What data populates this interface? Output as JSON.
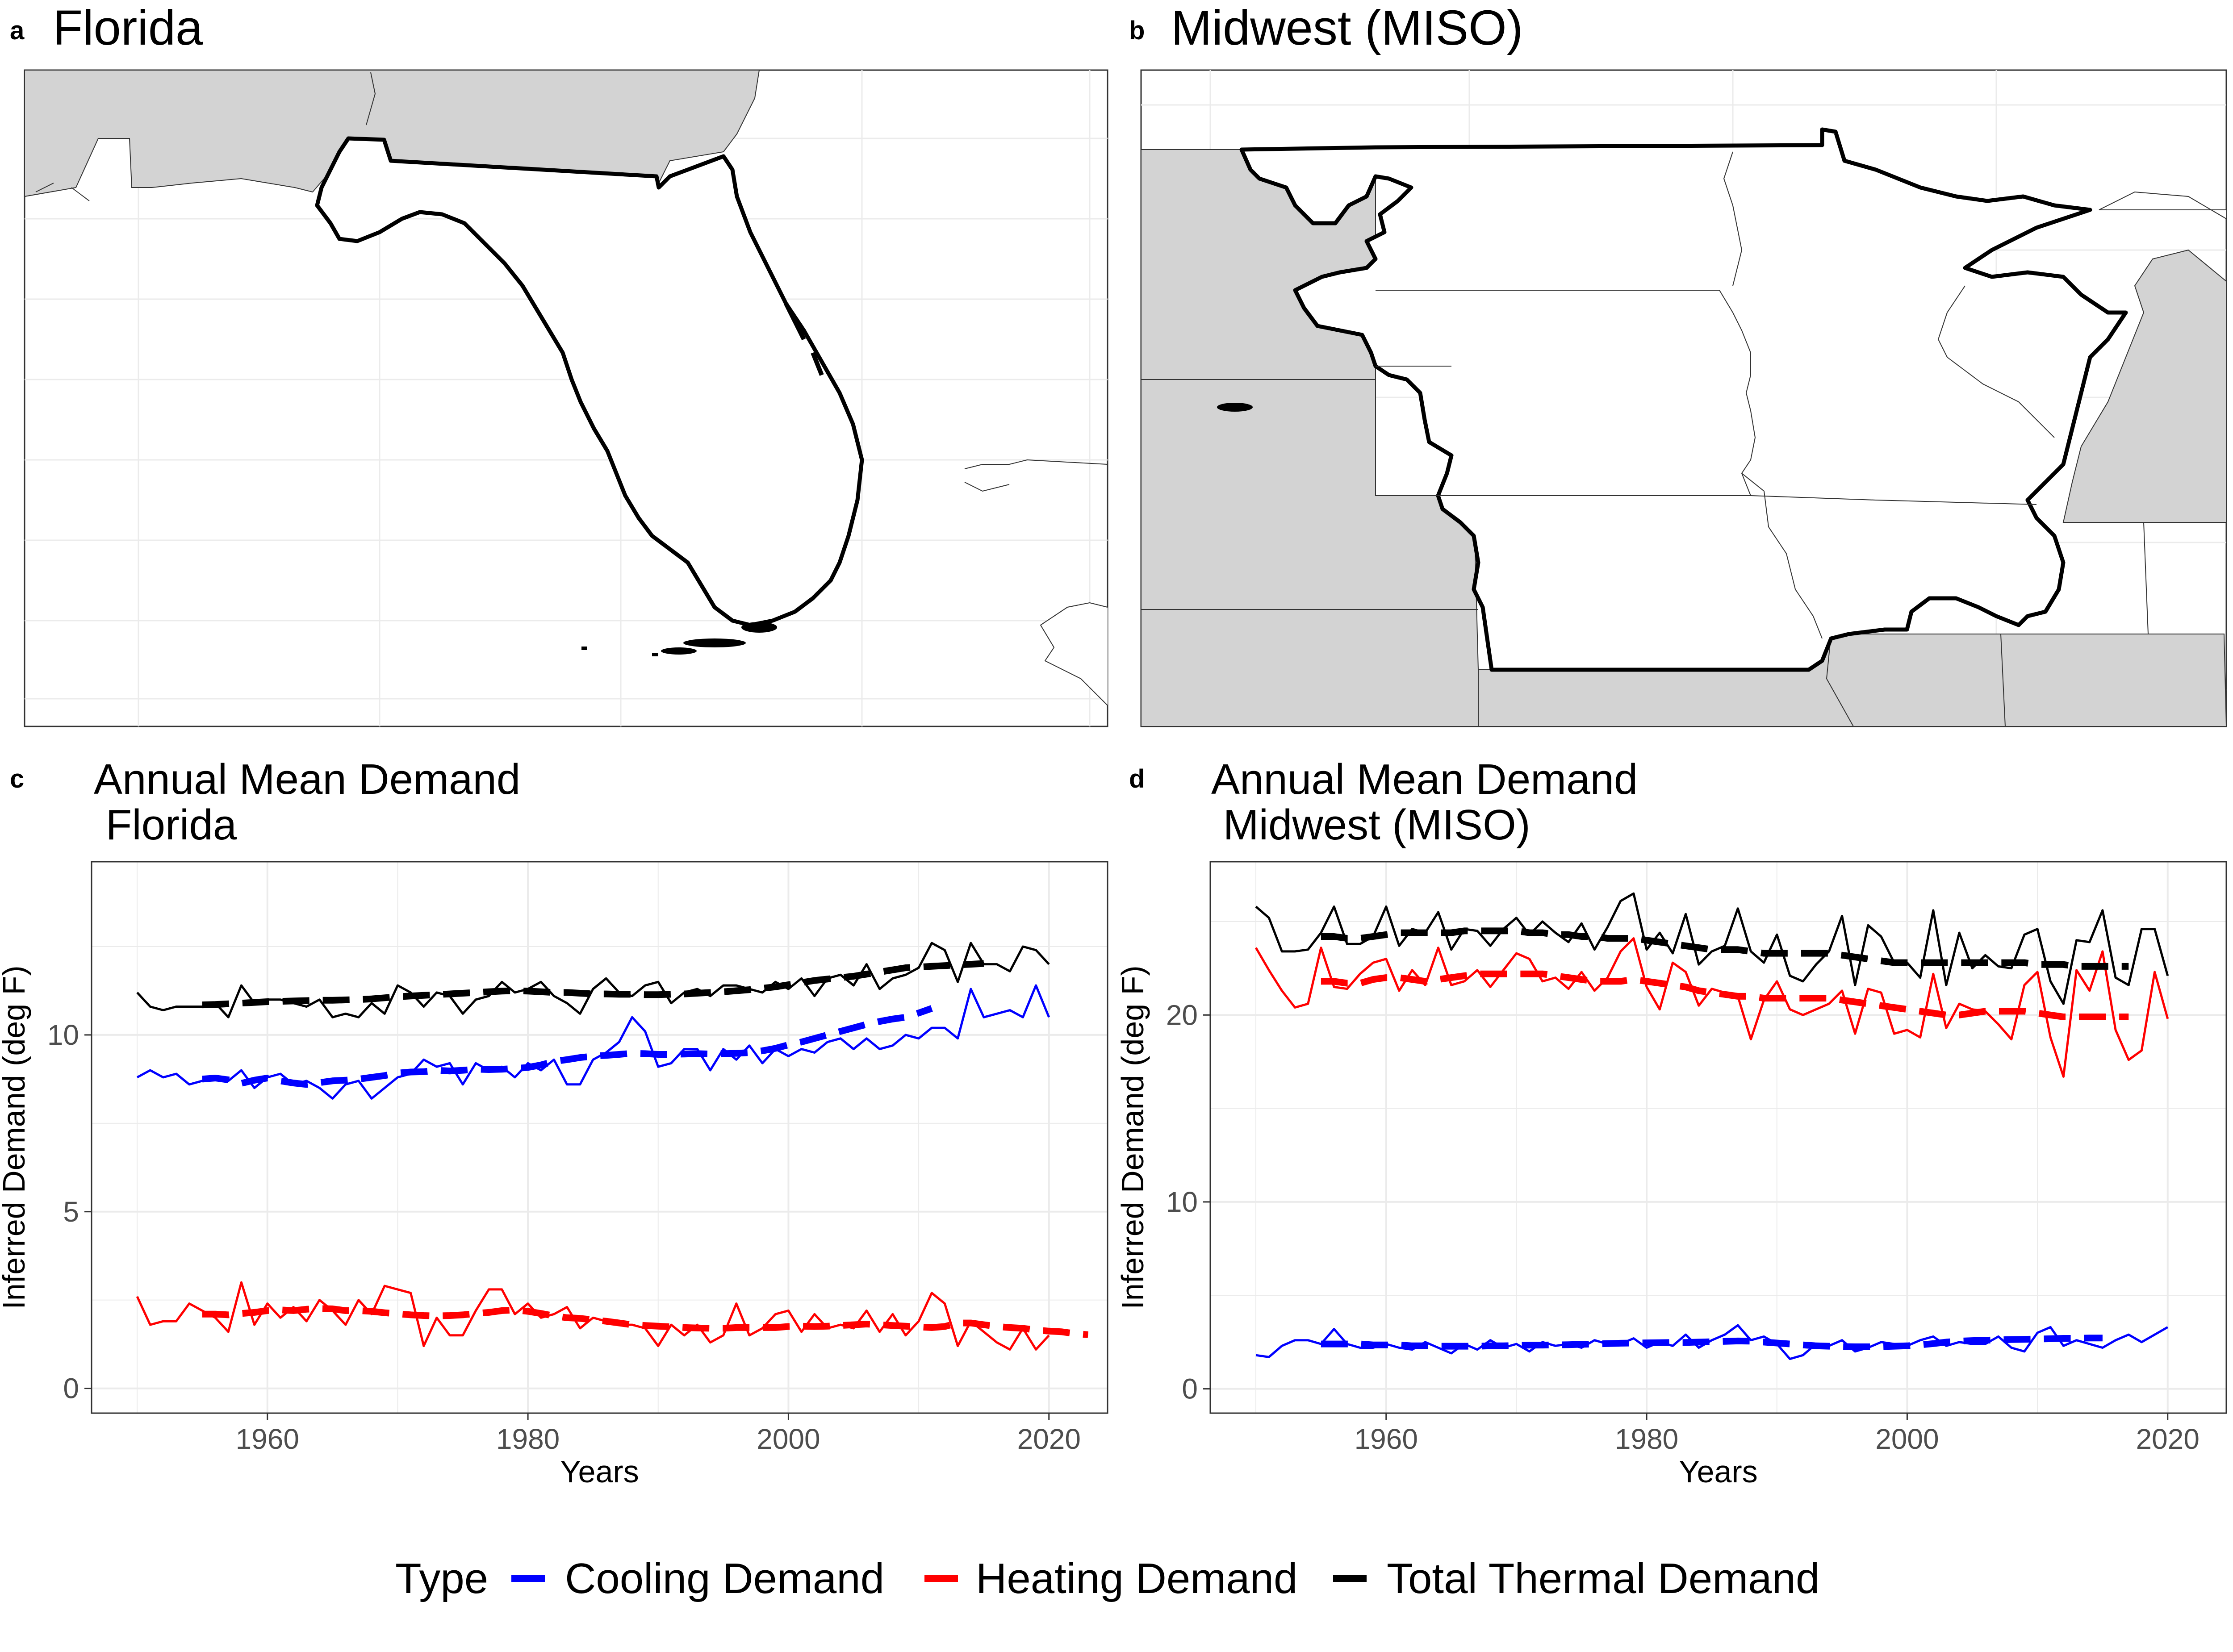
{
  "panels": {
    "a": {
      "letter": "a",
      "title": "Florida"
    },
    "b": {
      "letter": "b",
      "title": "Midwest (MISO)"
    },
    "c": {
      "letter": "c"
    },
    "d": {
      "letter": "d"
    }
  },
  "legend": {
    "title": "Type",
    "items": [
      {
        "label": "Cooling Demand",
        "color": "#0000ff"
      },
      {
        "label": "Heating Demand",
        "color": "#ff0000"
      },
      {
        "label": "Total Thermal Demand",
        "color": "#000000"
      }
    ]
  },
  "colors": {
    "cooling": "#0000ff",
    "heating": "#ff0000",
    "total": "#000000",
    "land": "#d3d3d3",
    "grid": "#ebebeb"
  },
  "chart_data": [
    {
      "type": "line",
      "title_line1": "Annual Mean Demand",
      "title_line2": " Florida",
      "xlabel": "Years",
      "ylabel": "Inferred Demand (deg F)",
      "xlim": [
        1946.5,
        2024.5
      ],
      "ylim": [
        -0.7,
        14.9
      ],
      "xticks": [
        1960,
        1980,
        2000,
        2020
      ],
      "yticks": [
        0,
        5,
        10
      ],
      "series": [
        {
          "name": "Cooling Demand",
          "color": "#0000ff",
          "x_start": 1950,
          "values": [
            8.8,
            9.0,
            8.8,
            8.9,
            8.6,
            8.7,
            8.8,
            8.7,
            9.0,
            8.5,
            8.8,
            8.9,
            8.6,
            8.7,
            8.5,
            8.2,
            8.6,
            8.7,
            8.2,
            8.5,
            8.8,
            8.9,
            9.3,
            9.1,
            9.2,
            8.6,
            9.2,
            9.0,
            9.1,
            8.8,
            9.2,
            9.0,
            9.3,
            8.6,
            8.6,
            9.3,
            9.5,
            9.8,
            10.5,
            10.1,
            9.1,
            9.2,
            9.6,
            9.6,
            9.0,
            9.6,
            9.3,
            9.7,
            9.2,
            9.6,
            9.4,
            9.6,
            9.5,
            9.8,
            9.9,
            9.6,
            9.9,
            9.6,
            9.7,
            10.0,
            9.9,
            10.2,
            10.2,
            9.9,
            11.3,
            10.5,
            10.6,
            10.7,
            10.5,
            11.4,
            10.5
          ]
        },
        {
          "name": "Heating Demand",
          "color": "#ff0000",
          "x_start": 1950,
          "values": [
            2.6,
            1.8,
            1.9,
            1.9,
            2.4,
            2.2,
            2.0,
            1.6,
            3.0,
            1.8,
            2.4,
            2.0,
            2.3,
            1.9,
            2.5,
            2.2,
            1.8,
            2.5,
            2.1,
            2.9,
            2.8,
            2.7,
            1.2,
            2.0,
            1.5,
            1.5,
            2.2,
            2.8,
            2.8,
            2.1,
            2.4,
            2.0,
            2.1,
            2.3,
            1.7,
            2.0,
            1.9,
            1.8,
            1.8,
            1.7,
            1.2,
            1.8,
            1.5,
            1.8,
            1.3,
            1.5,
            2.4,
            1.5,
            1.7,
            2.1,
            2.2,
            1.6,
            2.1,
            1.7,
            1.8,
            1.7,
            2.2,
            1.6,
            2.1,
            1.5,
            1.9,
            2.7,
            2.4,
            1.2,
            1.9,
            1.6,
            1.3,
            1.1,
            1.7,
            1.1,
            1.5
          ]
        },
        {
          "name": "Total Thermal Demand",
          "color": "#000000",
          "x_start": 1950,
          "values": [
            11.2,
            10.8,
            10.7,
            10.8,
            10.8,
            10.8,
            10.9,
            10.5,
            11.4,
            10.9,
            11.0,
            11.0,
            10.9,
            10.8,
            11.0,
            10.5,
            10.6,
            10.5,
            10.9,
            10.6,
            11.4,
            11.2,
            10.8,
            11.2,
            11.1,
            10.6,
            11.0,
            11.1,
            11.5,
            11.2,
            11.3,
            11.5,
            11.1,
            10.9,
            10.6,
            11.3,
            11.6,
            11.2,
            11.1,
            11.4,
            11.5,
            10.9,
            11.2,
            11.3,
            11.1,
            11.4,
            11.4,
            11.3,
            11.2,
            11.5,
            11.3,
            11.6,
            11.1,
            11.6,
            11.7,
            11.4,
            12.0,
            11.3,
            11.6,
            11.7,
            11.9,
            12.6,
            12.4,
            11.5,
            12.6,
            12.0,
            12.0,
            11.8,
            12.5,
            12.4,
            12.0
          ]
        },
        {
          "name": "Cooling Demand trend",
          "color": "#0000ff",
          "dashed": true,
          "x_start": 1955,
          "values": [
            8.75,
            8.78,
            8.73,
            8.63,
            8.72,
            8.78,
            8.7,
            8.64,
            8.6,
            8.65,
            8.7,
            8.72,
            8.75,
            8.8,
            8.85,
            8.92,
            8.95,
            8.96,
            9.0,
            8.98,
            9.0,
            9.03,
            9.02,
            9.03,
            9.05,
            9.08,
            9.15,
            9.25,
            9.3,
            9.36,
            9.4,
            9.42,
            9.45,
            9.48,
            9.47,
            9.45,
            9.45,
            9.46,
            9.47,
            9.46,
            9.47,
            9.48,
            9.5,
            9.55,
            9.62,
            9.72,
            9.8,
            9.9,
            10.0,
            10.1,
            10.2,
            10.3,
            10.38,
            10.45,
            10.5,
            10.62,
            10.75
          ]
        },
        {
          "name": "Heating Demand trend",
          "color": "#ff0000",
          "dashed": true,
          "x_start": 1955,
          "values": [
            2.1,
            2.1,
            2.08,
            2.12,
            2.15,
            2.2,
            2.22,
            2.2,
            2.24,
            2.26,
            2.25,
            2.2,
            2.2,
            2.18,
            2.14,
            2.11,
            2.08,
            2.06,
            2.05,
            2.06,
            2.08,
            2.12,
            2.15,
            2.2,
            2.22,
            2.18,
            2.12,
            2.05,
            2.0,
            1.98,
            1.94,
            1.9,
            1.85,
            1.8,
            1.78,
            1.76,
            1.74,
            1.72,
            1.71,
            1.7,
            1.7,
            1.72,
            1.72,
            1.72,
            1.72,
            1.75,
            1.76,
            1.75,
            1.76,
            1.78,
            1.8,
            1.82,
            1.8,
            1.78,
            1.76,
            1.74,
            1.72,
            1.75,
            1.85,
            1.85,
            1.8,
            1.75,
            1.72,
            1.7,
            1.65,
            1.62,
            1.6,
            1.55,
            1.52
          ]
        },
        {
          "name": "Total Thermal Demand trend",
          "color": "#000000",
          "dashed": true,
          "x_start": 1955,
          "values": [
            10.85,
            10.86,
            10.88,
            10.9,
            10.92,
            10.94,
            10.95,
            10.96,
            10.97,
            10.98,
            10.98,
            10.99,
            11.0,
            11.02,
            11.05,
            11.08,
            11.1,
            11.12,
            11.14,
            11.16,
            11.18,
            11.2,
            11.22,
            11.24,
            11.25,
            11.24,
            11.22,
            11.2,
            11.2,
            11.18,
            11.16,
            11.16,
            11.15,
            11.15,
            11.14,
            11.14,
            11.15,
            11.16,
            11.18,
            11.2,
            11.22,
            11.25,
            11.28,
            11.32,
            11.36,
            11.42,
            11.48,
            11.54,
            11.58,
            11.62,
            11.66,
            11.72,
            11.78,
            11.84,
            11.9,
            11.92,
            11.94,
            11.96,
            11.98,
            12.0,
            12.02
          ]
        }
      ]
    },
    {
      "type": "line",
      "title_line1": "Annual Mean Demand",
      "title_line2": " Midwest (MISO)",
      "xlabel": "Years",
      "ylabel": "Inferred Demand (deg F)",
      "xlim": [
        1946.5,
        2024.5
      ],
      "ylim": [
        -1.3,
        28.2
      ],
      "xticks": [
        1960,
        1980,
        2000,
        2020
      ],
      "yticks": [
        0,
        10,
        20
      ],
      "series": [
        {
          "name": "Cooling Demand",
          "color": "#0000ff",
          "x_start": 1950,
          "values": [
            1.8,
            1.7,
            2.3,
            2.6,
            2.6,
            2.4,
            3.2,
            2.4,
            2.2,
            2.2,
            2.4,
            2.2,
            2.1,
            2.5,
            2.2,
            1.9,
            2.4,
            2.1,
            2.6,
            2.2,
            2.4,
            2.0,
            2.5,
            2.3,
            2.4,
            2.2,
            2.6,
            2.4,
            2.4,
            2.7,
            2.2,
            2.5,
            2.3,
            2.9,
            2.2,
            2.6,
            2.9,
            3.4,
            2.6,
            2.8,
            2.4,
            1.6,
            1.8,
            2.4,
            2.3,
            2.6,
            2.0,
            2.2,
            2.5,
            2.4,
            2.3,
            2.6,
            2.8,
            2.3,
            2.5,
            2.4,
            2.4,
            2.8,
            2.2,
            2.0,
            3.0,
            3.3,
            2.3,
            2.6,
            2.4,
            2.2,
            2.6,
            2.9,
            2.5,
            2.9,
            3.3
          ]
        },
        {
          "name": "Heating Demand",
          "color": "#ff0000",
          "x_start": 1950,
          "values": [
            23.6,
            22.4,
            21.3,
            20.4,
            20.6,
            23.6,
            21.5,
            21.4,
            22.2,
            22.8,
            23.0,
            21.3,
            22.4,
            21.6,
            23.6,
            21.6,
            21.8,
            22.4,
            21.5,
            22.4,
            23.3,
            23.0,
            21.8,
            22.0,
            21.4,
            22.3,
            21.3,
            22.0,
            23.4,
            24.1,
            21.5,
            20.3,
            22.8,
            22.3,
            20.5,
            21.4,
            21.2,
            21.0,
            18.7,
            20.8,
            21.8,
            20.3,
            20.0,
            20.3,
            20.6,
            21.3,
            19.0,
            21.4,
            21.2,
            19.0,
            19.2,
            18.8,
            22.2,
            19.3,
            20.6,
            20.3,
            20.2,
            19.5,
            18.7,
            21.6,
            22.3,
            18.8,
            16.7,
            22.4,
            21.3,
            23.4,
            19.2,
            17.6,
            18.1,
            22.3,
            19.8
          ]
        },
        {
          "name": "Total Thermal Demand",
          "color": "#000000",
          "x_start": 1950,
          "values": [
            25.8,
            25.2,
            23.4,
            23.4,
            23.5,
            24.4,
            25.8,
            23.8,
            23.8,
            24.2,
            25.8,
            23.7,
            24.6,
            24.4,
            25.5,
            23.5,
            24.6,
            24.5,
            23.7,
            24.6,
            25.2,
            24.3,
            25.0,
            24.4,
            23.9,
            24.9,
            23.5,
            24.7,
            26.1,
            26.5,
            23.5,
            24.4,
            23.3,
            25.4,
            22.7,
            23.4,
            23.7,
            25.7,
            23.4,
            22.8,
            24.3,
            22.1,
            21.8,
            22.7,
            23.4,
            25.3,
            21.6,
            24.8,
            24.2,
            22.8,
            22.8,
            22.0,
            25.6,
            21.6,
            24.4,
            22.5,
            23.2,
            22.6,
            22.5,
            24.3,
            24.6,
            21.8,
            20.6,
            24.0,
            23.9,
            25.6,
            22.0,
            21.6,
            24.6,
            24.6,
            22.1
          ]
        },
        {
          "name": "Cooling Demand trend",
          "color": "#0000ff",
          "dashed": true,
          "x_start": 1955,
          "values": [
            2.4,
            2.4,
            2.4,
            2.4,
            2.35,
            2.35,
            2.35,
            2.3,
            2.3,
            2.28,
            2.28,
            2.28,
            2.28,
            2.3,
            2.3,
            2.32,
            2.34,
            2.34,
            2.35,
            2.36,
            2.38,
            2.4,
            2.42,
            2.44,
            2.45,
            2.46,
            2.47,
            2.48,
            2.48,
            2.5,
            2.52,
            2.54,
            2.56,
            2.55,
            2.5,
            2.45,
            2.4,
            2.35,
            2.3,
            2.28,
            2.26,
            2.25,
            2.25,
            2.26,
            2.28,
            2.3,
            2.35,
            2.42,
            2.5,
            2.55,
            2.58,
            2.6,
            2.62,
            2.64,
            2.65,
            2.66,
            2.68,
            2.7,
            2.7,
            2.72,
            2.72
          ]
        },
        {
          "name": "Heating Demand trend",
          "color": "#ff0000",
          "dashed": true,
          "x_start": 1955,
          "values": [
            21.8,
            21.8,
            21.7,
            21.7,
            21.9,
            22.0,
            22.0,
            21.9,
            21.8,
            21.9,
            22.0,
            22.1,
            22.2,
            22.2,
            22.2,
            22.2,
            22.2,
            22.2,
            22.1,
            22.0,
            21.9,
            21.8,
            21.8,
            21.8,
            21.9,
            21.8,
            21.7,
            21.6,
            21.5,
            21.3,
            21.2,
            21.1,
            21.0,
            21.0,
            20.9,
            20.9,
            20.9,
            20.9,
            20.9,
            20.9,
            20.8,
            20.7,
            20.6,
            20.5,
            20.4,
            20.3,
            20.2,
            20.1,
            20.0,
            20.0,
            20.1,
            20.2,
            20.2,
            20.2,
            20.2,
            20.1,
            20.0,
            19.9,
            19.9,
            19.9,
            19.9,
            19.9,
            19.9
          ]
        },
        {
          "name": "Total Thermal Demand trend",
          "color": "#000000",
          "dashed": true,
          "x_start": 1955,
          "values": [
            24.2,
            24.2,
            24.1,
            24.1,
            24.2,
            24.3,
            24.4,
            24.4,
            24.4,
            24.4,
            24.4,
            24.5,
            24.5,
            24.5,
            24.5,
            24.5,
            24.4,
            24.4,
            24.3,
            24.3,
            24.2,
            24.2,
            24.1,
            24.1,
            24.1,
            24.0,
            23.9,
            23.8,
            23.7,
            23.6,
            23.5,
            23.5,
            23.5,
            23.4,
            23.3,
            23.3,
            23.3,
            23.3,
            23.3,
            23.3,
            23.2,
            23.1,
            23.0,
            22.9,
            22.8,
            22.8,
            22.8,
            22.8,
            22.8,
            22.8,
            22.8,
            22.8,
            22.8,
            22.8,
            22.8,
            22.7,
            22.7,
            22.7,
            22.6,
            22.6,
            22.6,
            22.6,
            22.6
          ]
        }
      ]
    }
  ]
}
